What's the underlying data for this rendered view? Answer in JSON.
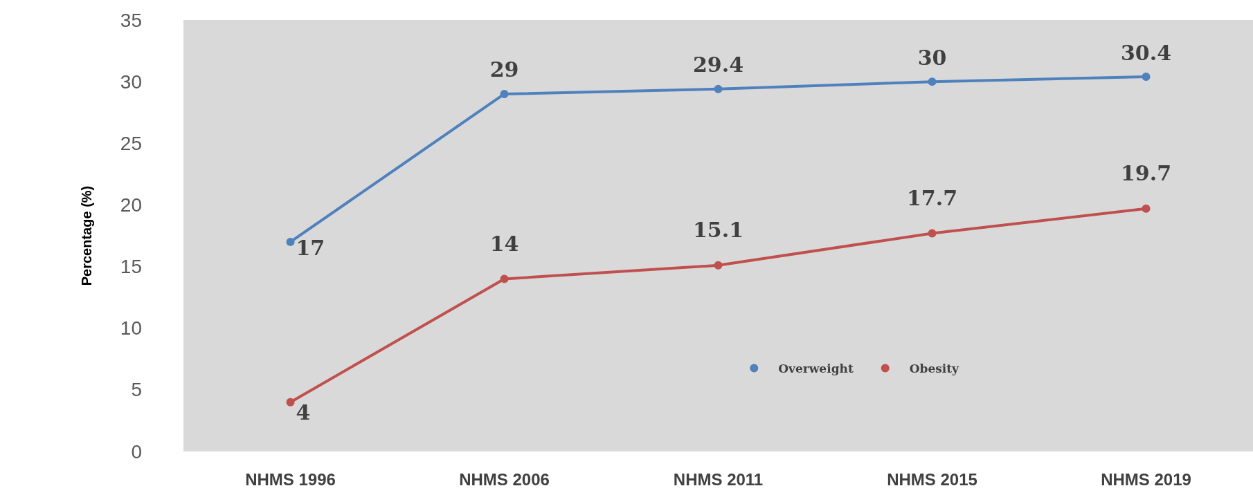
{
  "chart_data": {
    "type": "line",
    "ylabel": "Percentage (%)",
    "categories": [
      "NHMS 1996",
      "NHMS 2006",
      "NHMS 2011",
      "NHMS 2015",
      "NHMS 2019"
    ],
    "series": [
      {
        "name": "Overweight",
        "color": "#4f81bd",
        "values": [
          17,
          29,
          29.4,
          30,
          30.4
        ]
      },
      {
        "name": "Obesity",
        "color": "#c0504d",
        "values": [
          4,
          14,
          15.1,
          17.7,
          19.7
        ]
      }
    ],
    "ylim": [
      0,
      35
    ],
    "yticks": [
      0,
      5,
      10,
      15,
      20,
      25,
      30,
      35
    ],
    "grid": false,
    "legend": "bottom right",
    "marker": "circle",
    "line_style": "solid",
    "data_labels": true
  }
}
